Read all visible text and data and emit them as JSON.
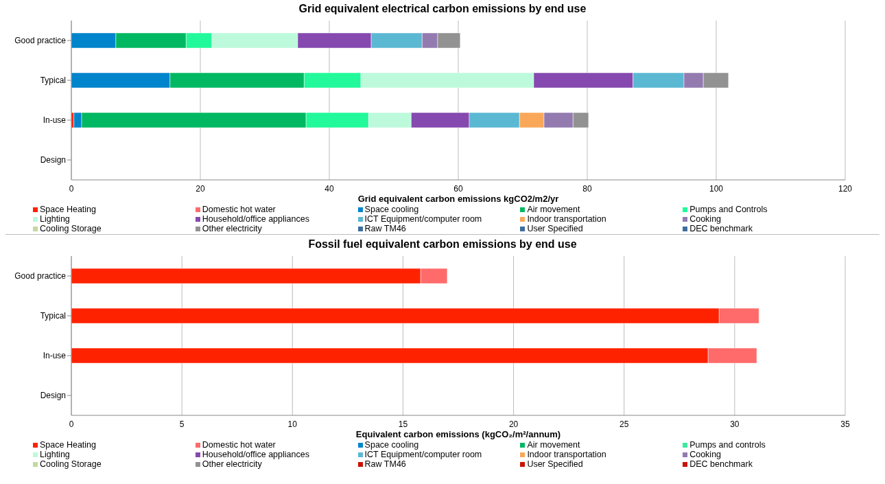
{
  "chart_data": [
    {
      "type": "bar",
      "orientation": "horizontal",
      "stacked": true,
      "title": "Grid equivalent electrical carbon emissions by end use",
      "xlabel": "Grid equivalent carbon emissions kgCO2/m2/yr",
      "categories": [
        "Good practice",
        "Typical",
        "In-use",
        "Design"
      ],
      "xlim": [
        0,
        120
      ],
      "xticks": [
        0,
        20,
        40,
        60,
        80,
        100,
        120
      ],
      "grid": "x",
      "legend": "bottom",
      "series": [
        {
          "name": "Space Heating",
          "color": "#ff2200",
          "values": [
            null,
            null,
            0.4,
            null
          ]
        },
        {
          "name": "Domestic hot water",
          "color": "#ff6b6b",
          "values": [
            null,
            null,
            null,
            null
          ]
        },
        {
          "name": "Space cooling",
          "color": "#0084cc",
          "values": [
            6.9,
            15.3,
            1.2,
            null
          ]
        },
        {
          "name": "Air movement",
          "color": "#00b862",
          "values": [
            10.9,
            20.8,
            34.8,
            null
          ]
        },
        {
          "name": "Pumps and Controls",
          "color": "#22f99a",
          "values": [
            4.0,
            8.8,
            9.7,
            null
          ]
        },
        {
          "name": "Lighting",
          "color": "#bcfadb",
          "values": [
            13.3,
            26.8,
            6.6,
            null
          ]
        },
        {
          "name": "Household/office appliances",
          "color": "#8549af",
          "values": [
            11.4,
            15.4,
            9.0,
            null
          ]
        },
        {
          "name": "ICT Equipment/computer room",
          "color": "#5bb8d3",
          "values": [
            7.9,
            7.9,
            7.8,
            null
          ]
        },
        {
          "name": "Indoor transportation",
          "color": "#f9a85a",
          "values": [
            null,
            null,
            3.8,
            null
          ]
        },
        {
          "name": "Cooking",
          "color": "#937bb0",
          "values": [
            2.4,
            3.0,
            4.5,
            null
          ]
        },
        {
          "name": "Cooling Storage",
          "color": "#c4d8a0",
          "values": [
            null,
            null,
            null,
            null
          ]
        },
        {
          "name": "Other electricity",
          "color": "#929292",
          "values": [
            3.5,
            3.9,
            2.4,
            null
          ]
        },
        {
          "name": "Raw TM46",
          "color": "#3e6e9e",
          "values": [
            null,
            null,
            null,
            null
          ]
        },
        {
          "name": "User Specified",
          "color": "#3e6e9e",
          "values": [
            null,
            null,
            null,
            null
          ]
        },
        {
          "name": "DEC benchmark",
          "color": "#3e6e9e",
          "values": [
            null,
            null,
            null,
            null
          ]
        }
      ]
    },
    {
      "type": "bar",
      "orientation": "horizontal",
      "stacked": true,
      "title": "Fossil fuel equivalent carbon emissions by end use",
      "xlabel": "Equivalent carbon emissions (kgCO₂/m²/annum)",
      "categories": [
        "Good practice",
        "Typical",
        "In-use",
        "Design"
      ],
      "xlim": [
        0,
        35
      ],
      "xticks": [
        0,
        5,
        10,
        15,
        20,
        25,
        30,
        35
      ],
      "grid": "x",
      "legend": "bottom",
      "series": [
        {
          "name": "Space Heating",
          "color": "#ff2200",
          "values": [
            15.8,
            29.3,
            28.8,
            null
          ]
        },
        {
          "name": "Domestic hot water",
          "color": "#ff6b6b",
          "values": [
            1.2,
            1.8,
            2.2,
            null
          ]
        },
        {
          "name": "Space cooling",
          "color": "#0084cc",
          "values": [
            null,
            null,
            null,
            null
          ]
        },
        {
          "name": "Air movement",
          "color": "#00b862",
          "values": [
            null,
            null,
            null,
            null
          ]
        },
        {
          "name": "Pumps and controls",
          "color": "#3ee8a0",
          "values": [
            null,
            null,
            null,
            null
          ]
        },
        {
          "name": "Lighting",
          "color": "#bcfadb",
          "values": [
            null,
            null,
            null,
            null
          ]
        },
        {
          "name": "Household/office appliances",
          "color": "#8549af",
          "values": [
            null,
            null,
            null,
            null
          ]
        },
        {
          "name": "ICT Equipment/computer room",
          "color": "#5bb8d3",
          "values": [
            null,
            null,
            null,
            null
          ]
        },
        {
          "name": "Indoor transportation",
          "color": "#f9a85a",
          "values": [
            null,
            null,
            null,
            null
          ]
        },
        {
          "name": "Cooking",
          "color": "#937bb0",
          "values": [
            null,
            null,
            null,
            null
          ]
        },
        {
          "name": "Cooling Storage",
          "color": "#c4d8a0",
          "values": [
            null,
            null,
            null,
            null
          ]
        },
        {
          "name": "Other electricity",
          "color": "#929292",
          "values": [
            null,
            null,
            null,
            null
          ]
        },
        {
          "name": "Raw TM46",
          "color": "#cc1100",
          "values": [
            null,
            null,
            null,
            null
          ]
        },
        {
          "name": "User Specified",
          "color": "#cc1100",
          "values": [
            null,
            null,
            null,
            null
          ]
        },
        {
          "name": "DEC benchmark",
          "color": "#cc1100",
          "values": [
            null,
            null,
            null,
            null
          ]
        }
      ]
    }
  ]
}
